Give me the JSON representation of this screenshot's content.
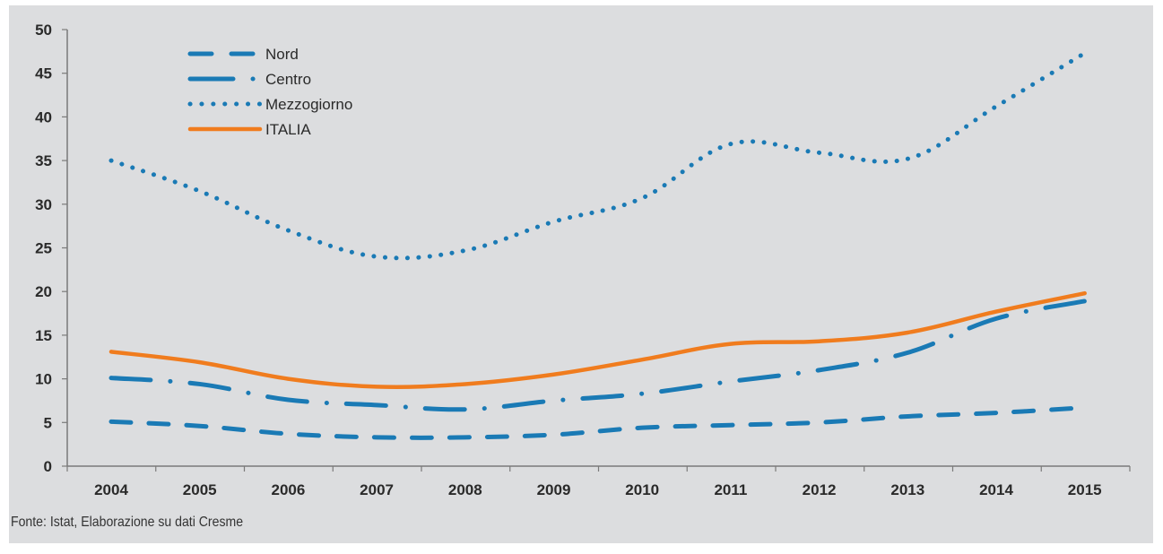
{
  "chart_data": {
    "type": "line",
    "title": "",
    "xlabel": "",
    "ylabel": "",
    "x": [
      2004,
      2005,
      2006,
      2007,
      2008,
      2009,
      2010,
      2011,
      2012,
      2013,
      2014,
      2015
    ],
    "categories": [
      "2004",
      "2005",
      "2006",
      "2007",
      "2008",
      "2009",
      "2010",
      "2011",
      "2012",
      "2013",
      "2014",
      "2015"
    ],
    "ylim": [
      0,
      50
    ],
    "yticks": [
      0,
      5,
      10,
      15,
      20,
      25,
      30,
      35,
      40,
      45,
      50
    ],
    "grid": false,
    "legend_position": "top-left",
    "series": [
      {
        "name": "Nord",
        "style": "dashed",
        "color": "#1f77b4",
        "values": [
          5.1,
          4.6,
          3.7,
          3.3,
          3.3,
          3.6,
          4.4,
          4.7,
          5.0,
          5.7,
          6.1,
          6.7
        ]
      },
      {
        "name": "Centro",
        "style": "dash-dot",
        "color": "#1f77b4",
        "values": [
          10.1,
          9.4,
          7.6,
          7.0,
          6.5,
          7.5,
          8.3,
          9.7,
          11.0,
          13.0,
          16.9,
          18.9
        ]
      },
      {
        "name": "Mezzogiorno",
        "style": "dotted",
        "color": "#1f77b4",
        "values": [
          35.0,
          31.5,
          27.0,
          24.0,
          24.7,
          28.0,
          30.7,
          36.9,
          35.9,
          35.2,
          41.2,
          47.3
        ]
      },
      {
        "name": "ITALIA",
        "style": "solid",
        "color": "#f07c1e",
        "values": [
          13.1,
          11.9,
          10.0,
          9.1,
          9.4,
          10.5,
          12.2,
          14.0,
          14.3,
          15.3,
          17.7,
          19.8
        ]
      }
    ],
    "source": "Fonte: Istat, Elaborazione su dati Cresme"
  },
  "colors": {
    "background": "#dcdddf",
    "blue": "#1a7ab5",
    "orange": "#f07c1e",
    "axis": "#7a7a7a"
  }
}
